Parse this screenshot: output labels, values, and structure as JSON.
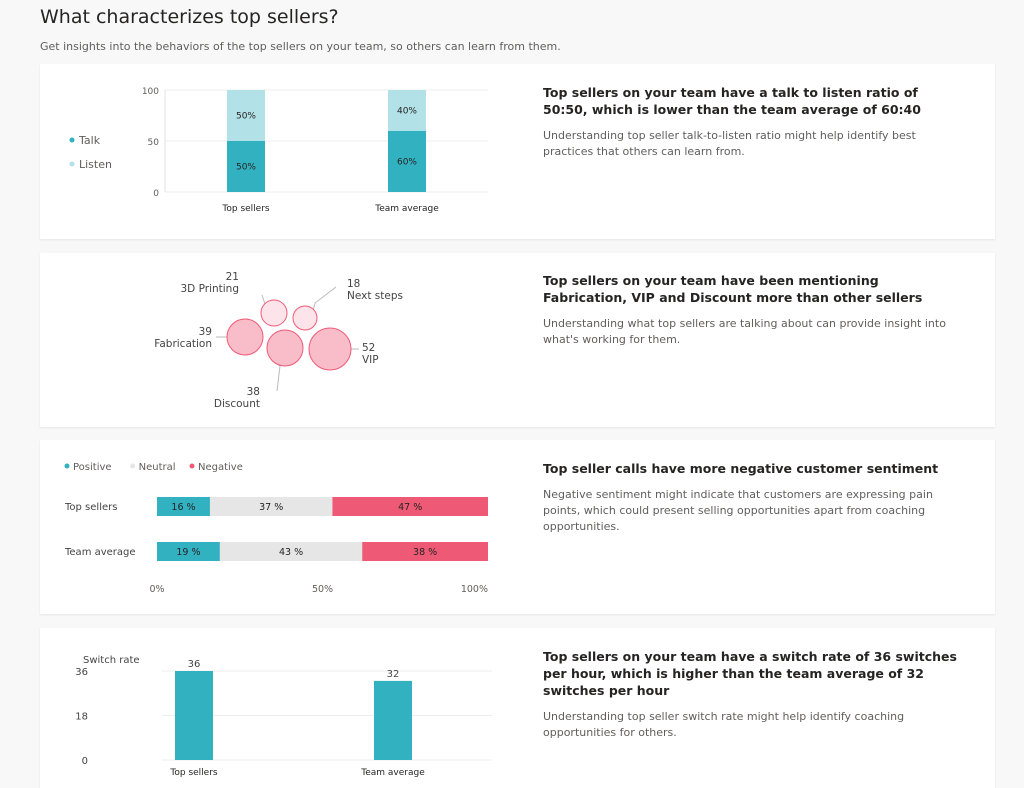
{
  "header": {
    "title": "What characterizes top sellers?",
    "subtitle": "Get insights into the behaviors of the top sellers on your team, so others can learn from them."
  },
  "colors": {
    "talk": "#32b1c1",
    "listen": "#b2e1e7",
    "positive": "#32b1c1",
    "neutral": "#e6e6e6",
    "negative": "#ee5a76",
    "bubble_fill": "#f9bdc9",
    "bubble_light": "#fde4ea",
    "bubble_stroke": "#ee5a76"
  },
  "cards": [
    {
      "heading": "Top sellers on your team have a talk to listen ratio of 50:50, which is lower than the team average of 60:40",
      "description": "Understanding top seller talk-to-listen ratio might help identify best practices that others can learn from."
    },
    {
      "heading_parts": [
        "Top sellers on your team have been mentioning ",
        "Fabrication",
        ", ",
        "VIP",
        " and ",
        "Discount",
        " more than other sellers"
      ],
      "description": "Understanding what top sellers are talking about can provide insight into what's working for them."
    },
    {
      "heading": "Top seller calls have more negative customer sentiment",
      "description": "Negative sentiment might indicate that customers are expressing pain points, which could present selling opportunities apart from coaching opportunities."
    },
    {
      "heading": "Top sellers on your team have a switch rate of 36 switches per hour, which is higher than the team average of 32 switches per hour",
      "description": "Understanding top seller switch rate might help identify coaching opportunities for others."
    }
  ],
  "chart_data": [
    {
      "type": "bar",
      "stacked": true,
      "categories": [
        "Top sellers",
        "Team average"
      ],
      "series": [
        {
          "name": "Talk",
          "values": [
            50,
            60
          ],
          "labels": [
            "50%",
            "60%"
          ]
        },
        {
          "name": "Listen",
          "values": [
            50,
            40
          ],
          "labels": [
            "50%",
            "40%"
          ]
        }
      ],
      "yticks": [
        "0",
        "50",
        "100"
      ],
      "ylim": [
        0,
        100
      ],
      "legend": "left"
    },
    {
      "type": "scatter",
      "bubble": true,
      "points": [
        {
          "label": "3D Printing",
          "value": 21
        },
        {
          "label": "Next steps",
          "value": 18
        },
        {
          "label": "Fabrication",
          "value": 39
        },
        {
          "label": "Discount",
          "value": 38
        },
        {
          "label": "VIP",
          "value": 52
        }
      ]
    },
    {
      "type": "bar",
      "orientation": "horizontal",
      "stacked": true,
      "categories": [
        "Top sellers",
        "Team average"
      ],
      "series": [
        {
          "name": "Positive",
          "values": [
            16,
            19
          ],
          "labels": [
            "16 %",
            "19 %"
          ]
        },
        {
          "name": "Neutral",
          "values": [
            37,
            43
          ],
          "labels": [
            "37 %",
            "43 %"
          ]
        },
        {
          "name": "Negative",
          "values": [
            47,
            38
          ],
          "labels": [
            "47 %",
            "38 %"
          ]
        }
      ],
      "xticks": [
        "0%",
        "50%",
        "100%"
      ],
      "xlim": [
        0,
        100
      ],
      "legend": "top-left"
    },
    {
      "type": "bar",
      "categories": [
        "Top sellers",
        "Team average"
      ],
      "values": [
        36,
        32
      ],
      "ylabel": "Switch rate",
      "yticks": [
        "0",
        "18",
        "36"
      ],
      "ylim": [
        0,
        36
      ]
    }
  ]
}
